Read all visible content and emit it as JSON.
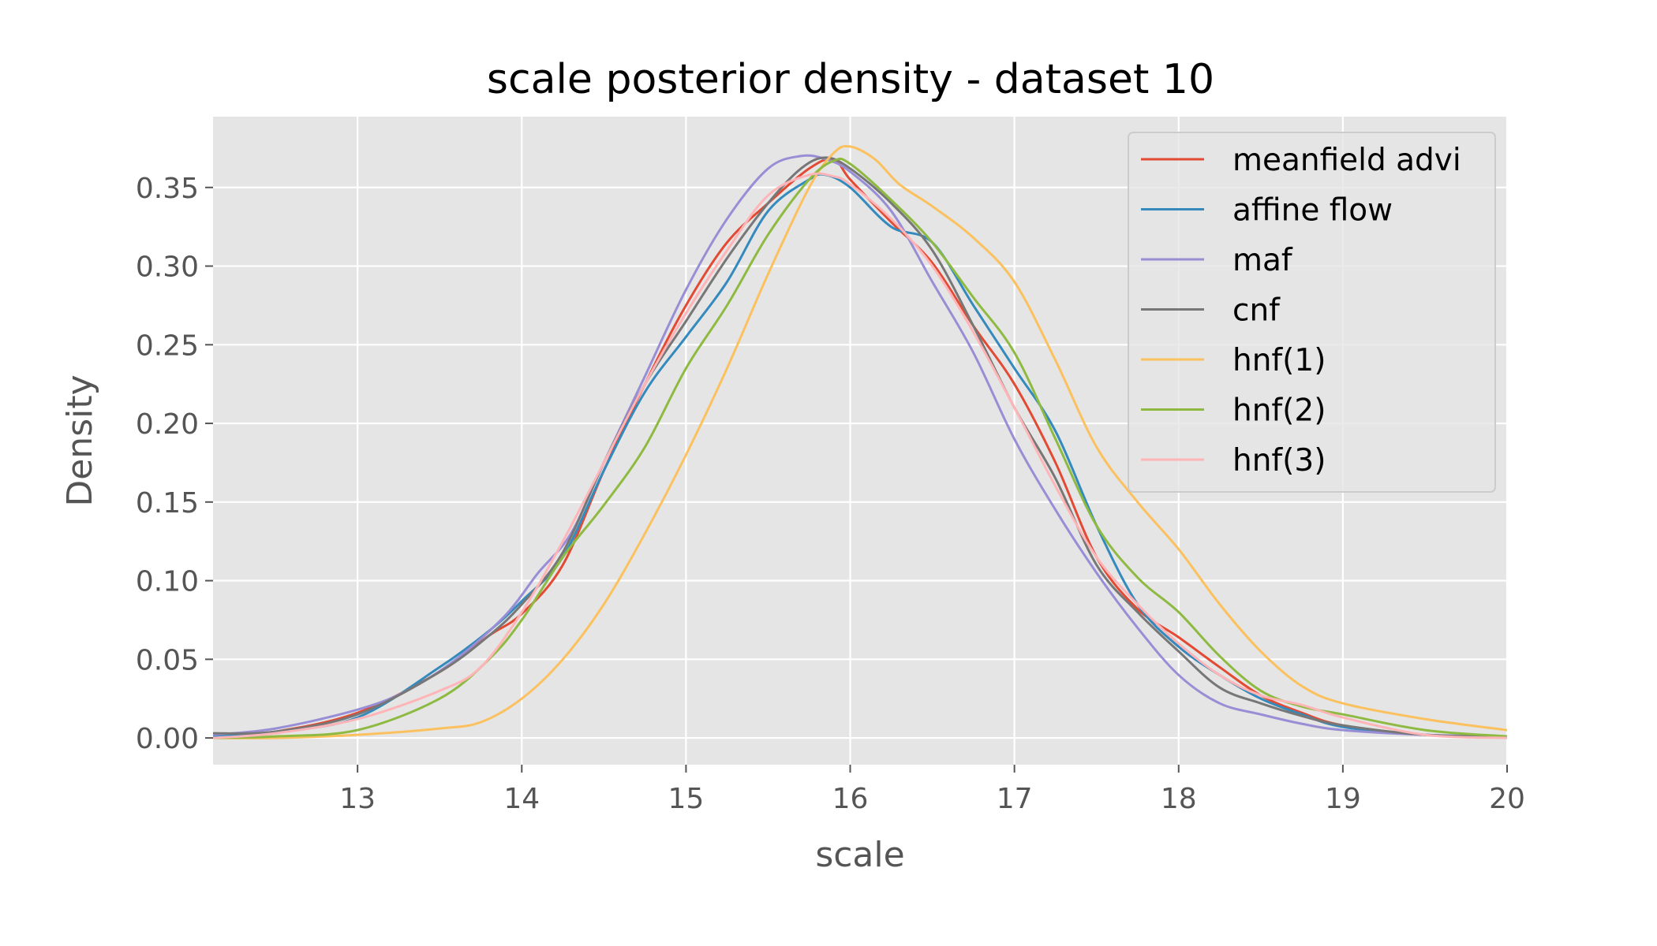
{
  "chart_data": {
    "type": "line",
    "title": "scale posterior density - dataset 10",
    "xlabel": "scale",
    "ylabel": "Density",
    "xlim": [
      12.12,
      20.0
    ],
    "ylim": [
      -0.017,
      0.395
    ],
    "xticks": [
      13,
      14,
      15,
      16,
      17,
      18,
      19,
      20
    ],
    "xtick_labels": [
      "13",
      "14",
      "15",
      "16",
      "17",
      "18",
      "19",
      "20"
    ],
    "yticks": [
      0.0,
      0.05,
      0.1,
      0.15,
      0.2,
      0.25,
      0.3,
      0.35
    ],
    "ytick_labels": [
      "0.00",
      "0.05",
      "0.10",
      "0.15",
      "0.20",
      "0.25",
      "0.30",
      "0.35"
    ],
    "grid": true,
    "legend_position": "top-right",
    "series": [
      {
        "name": "meanfield advi",
        "color": "#E24A33",
        "x": [
          12.12,
          12.5,
          13.0,
          13.5,
          13.8,
          14.0,
          14.25,
          14.5,
          14.75,
          15.0,
          15.25,
          15.5,
          15.75,
          15.9,
          16.0,
          16.25,
          16.5,
          16.75,
          17.0,
          17.25,
          17.5,
          17.75,
          18.0,
          18.25,
          18.5,
          18.75,
          19.0,
          19.5,
          20.0
        ],
        "y": [
          0.001,
          0.004,
          0.016,
          0.042,
          0.065,
          0.079,
          0.11,
          0.17,
          0.225,
          0.275,
          0.315,
          0.34,
          0.362,
          0.368,
          0.355,
          0.328,
          0.302,
          0.262,
          0.225,
          0.175,
          0.115,
          0.082,
          0.064,
          0.045,
          0.027,
          0.016,
          0.008,
          0.002,
          0.001
        ]
      },
      {
        "name": "affine flow",
        "color": "#348ABD",
        "x": [
          12.12,
          12.5,
          13.0,
          13.5,
          13.8,
          14.0,
          14.25,
          14.5,
          14.75,
          15.0,
          15.25,
          15.5,
          15.75,
          15.85,
          16.0,
          16.25,
          16.5,
          16.75,
          17.0,
          17.25,
          17.5,
          17.75,
          18.0,
          18.25,
          18.5,
          18.75,
          19.0,
          19.5,
          20.0
        ],
        "y": [
          0.001,
          0.004,
          0.013,
          0.045,
          0.068,
          0.087,
          0.115,
          0.17,
          0.22,
          0.255,
          0.29,
          0.335,
          0.355,
          0.358,
          0.35,
          0.325,
          0.315,
          0.275,
          0.235,
          0.195,
          0.135,
          0.085,
          0.058,
          0.04,
          0.025,
          0.015,
          0.007,
          0.002,
          0.001
        ]
      },
      {
        "name": "maf",
        "color": "#988ED5",
        "x": [
          12.12,
          12.5,
          13.0,
          13.3,
          13.6,
          13.9,
          14.1,
          14.3,
          14.5,
          14.75,
          15.0,
          15.25,
          15.5,
          15.7,
          15.85,
          16.0,
          16.25,
          16.5,
          16.75,
          17.0,
          17.25,
          17.5,
          17.75,
          18.0,
          18.25,
          18.5,
          18.75,
          19.0,
          19.5,
          20.0
        ],
        "y": [
          0.002,
          0.006,
          0.018,
          0.03,
          0.05,
          0.078,
          0.105,
          0.13,
          0.175,
          0.23,
          0.285,
          0.33,
          0.362,
          0.37,
          0.368,
          0.36,
          0.335,
          0.29,
          0.245,
          0.19,
          0.145,
          0.105,
          0.07,
          0.04,
          0.022,
          0.015,
          0.009,
          0.005,
          0.002,
          0.001
        ]
      },
      {
        "name": "cnf",
        "color": "#777777",
        "x": [
          12.12,
          12.5,
          13.0,
          13.5,
          13.8,
          14.0,
          14.25,
          14.5,
          14.75,
          15.0,
          15.25,
          15.5,
          15.7,
          15.85,
          16.0,
          16.25,
          16.5,
          16.75,
          17.0,
          17.25,
          17.5,
          17.75,
          18.0,
          18.25,
          18.5,
          18.75,
          19.0,
          19.5,
          20.0
        ],
        "y": [
          0.003,
          0.004,
          0.015,
          0.042,
          0.065,
          0.085,
          0.118,
          0.175,
          0.225,
          0.265,
          0.305,
          0.34,
          0.362,
          0.369,
          0.362,
          0.34,
          0.31,
          0.262,
          0.21,
          0.165,
          0.11,
          0.08,
          0.055,
          0.032,
          0.022,
          0.014,
          0.008,
          0.002,
          0.001
        ]
      },
      {
        "name": "hnf(1)",
        "color": "#FBC15E",
        "x": [
          12.12,
          12.5,
          13.0,
          13.5,
          13.75,
          14.0,
          14.25,
          14.5,
          14.75,
          15.0,
          15.25,
          15.5,
          15.75,
          15.9,
          16.0,
          16.15,
          16.3,
          16.5,
          16.75,
          17.0,
          17.25,
          17.5,
          17.75,
          18.0,
          18.25,
          18.5,
          18.75,
          19.0,
          19.5,
          20.0
        ],
        "y": [
          0.0,
          0.0,
          0.002,
          0.006,
          0.01,
          0.025,
          0.05,
          0.085,
          0.13,
          0.18,
          0.235,
          0.295,
          0.35,
          0.372,
          0.376,
          0.368,
          0.352,
          0.338,
          0.318,
          0.29,
          0.24,
          0.185,
          0.15,
          0.12,
          0.085,
          0.055,
          0.033,
          0.022,
          0.012,
          0.005
        ]
      },
      {
        "name": "hnf(2)",
        "color": "#8EBA42",
        "x": [
          12.12,
          12.5,
          13.0,
          13.5,
          13.8,
          14.0,
          14.25,
          14.5,
          14.75,
          15.0,
          15.25,
          15.5,
          15.75,
          15.9,
          16.0,
          16.25,
          16.5,
          16.75,
          17.0,
          17.25,
          17.5,
          17.75,
          18.0,
          18.25,
          18.5,
          18.75,
          19.0,
          19.5,
          20.0
        ],
        "y": [
          0.0,
          0.001,
          0.005,
          0.025,
          0.05,
          0.075,
          0.115,
          0.148,
          0.185,
          0.235,
          0.275,
          0.32,
          0.355,
          0.367,
          0.365,
          0.342,
          0.315,
          0.28,
          0.245,
          0.19,
          0.135,
          0.102,
          0.08,
          0.052,
          0.03,
          0.02,
          0.015,
          0.005,
          0.001
        ]
      },
      {
        "name": "hnf(3)",
        "color": "#FFB5B8",
        "x": [
          12.12,
          12.5,
          13.0,
          13.5,
          13.75,
          14.0,
          14.25,
          14.5,
          14.75,
          15.0,
          15.25,
          15.5,
          15.75,
          15.9,
          16.0,
          16.25,
          16.5,
          16.75,
          17.0,
          17.25,
          17.5,
          17.75,
          18.0,
          18.25,
          18.5,
          18.75,
          19.0,
          19.5,
          20.0
        ],
        "y": [
          0.0,
          0.003,
          0.012,
          0.03,
          0.045,
          0.08,
          0.125,
          0.175,
          0.225,
          0.27,
          0.31,
          0.345,
          0.358,
          0.357,
          0.352,
          0.33,
          0.3,
          0.258,
          0.21,
          0.16,
          0.115,
          0.085,
          0.06,
          0.04,
          0.027,
          0.021,
          0.013,
          0.002,
          0.0
        ]
      }
    ]
  }
}
